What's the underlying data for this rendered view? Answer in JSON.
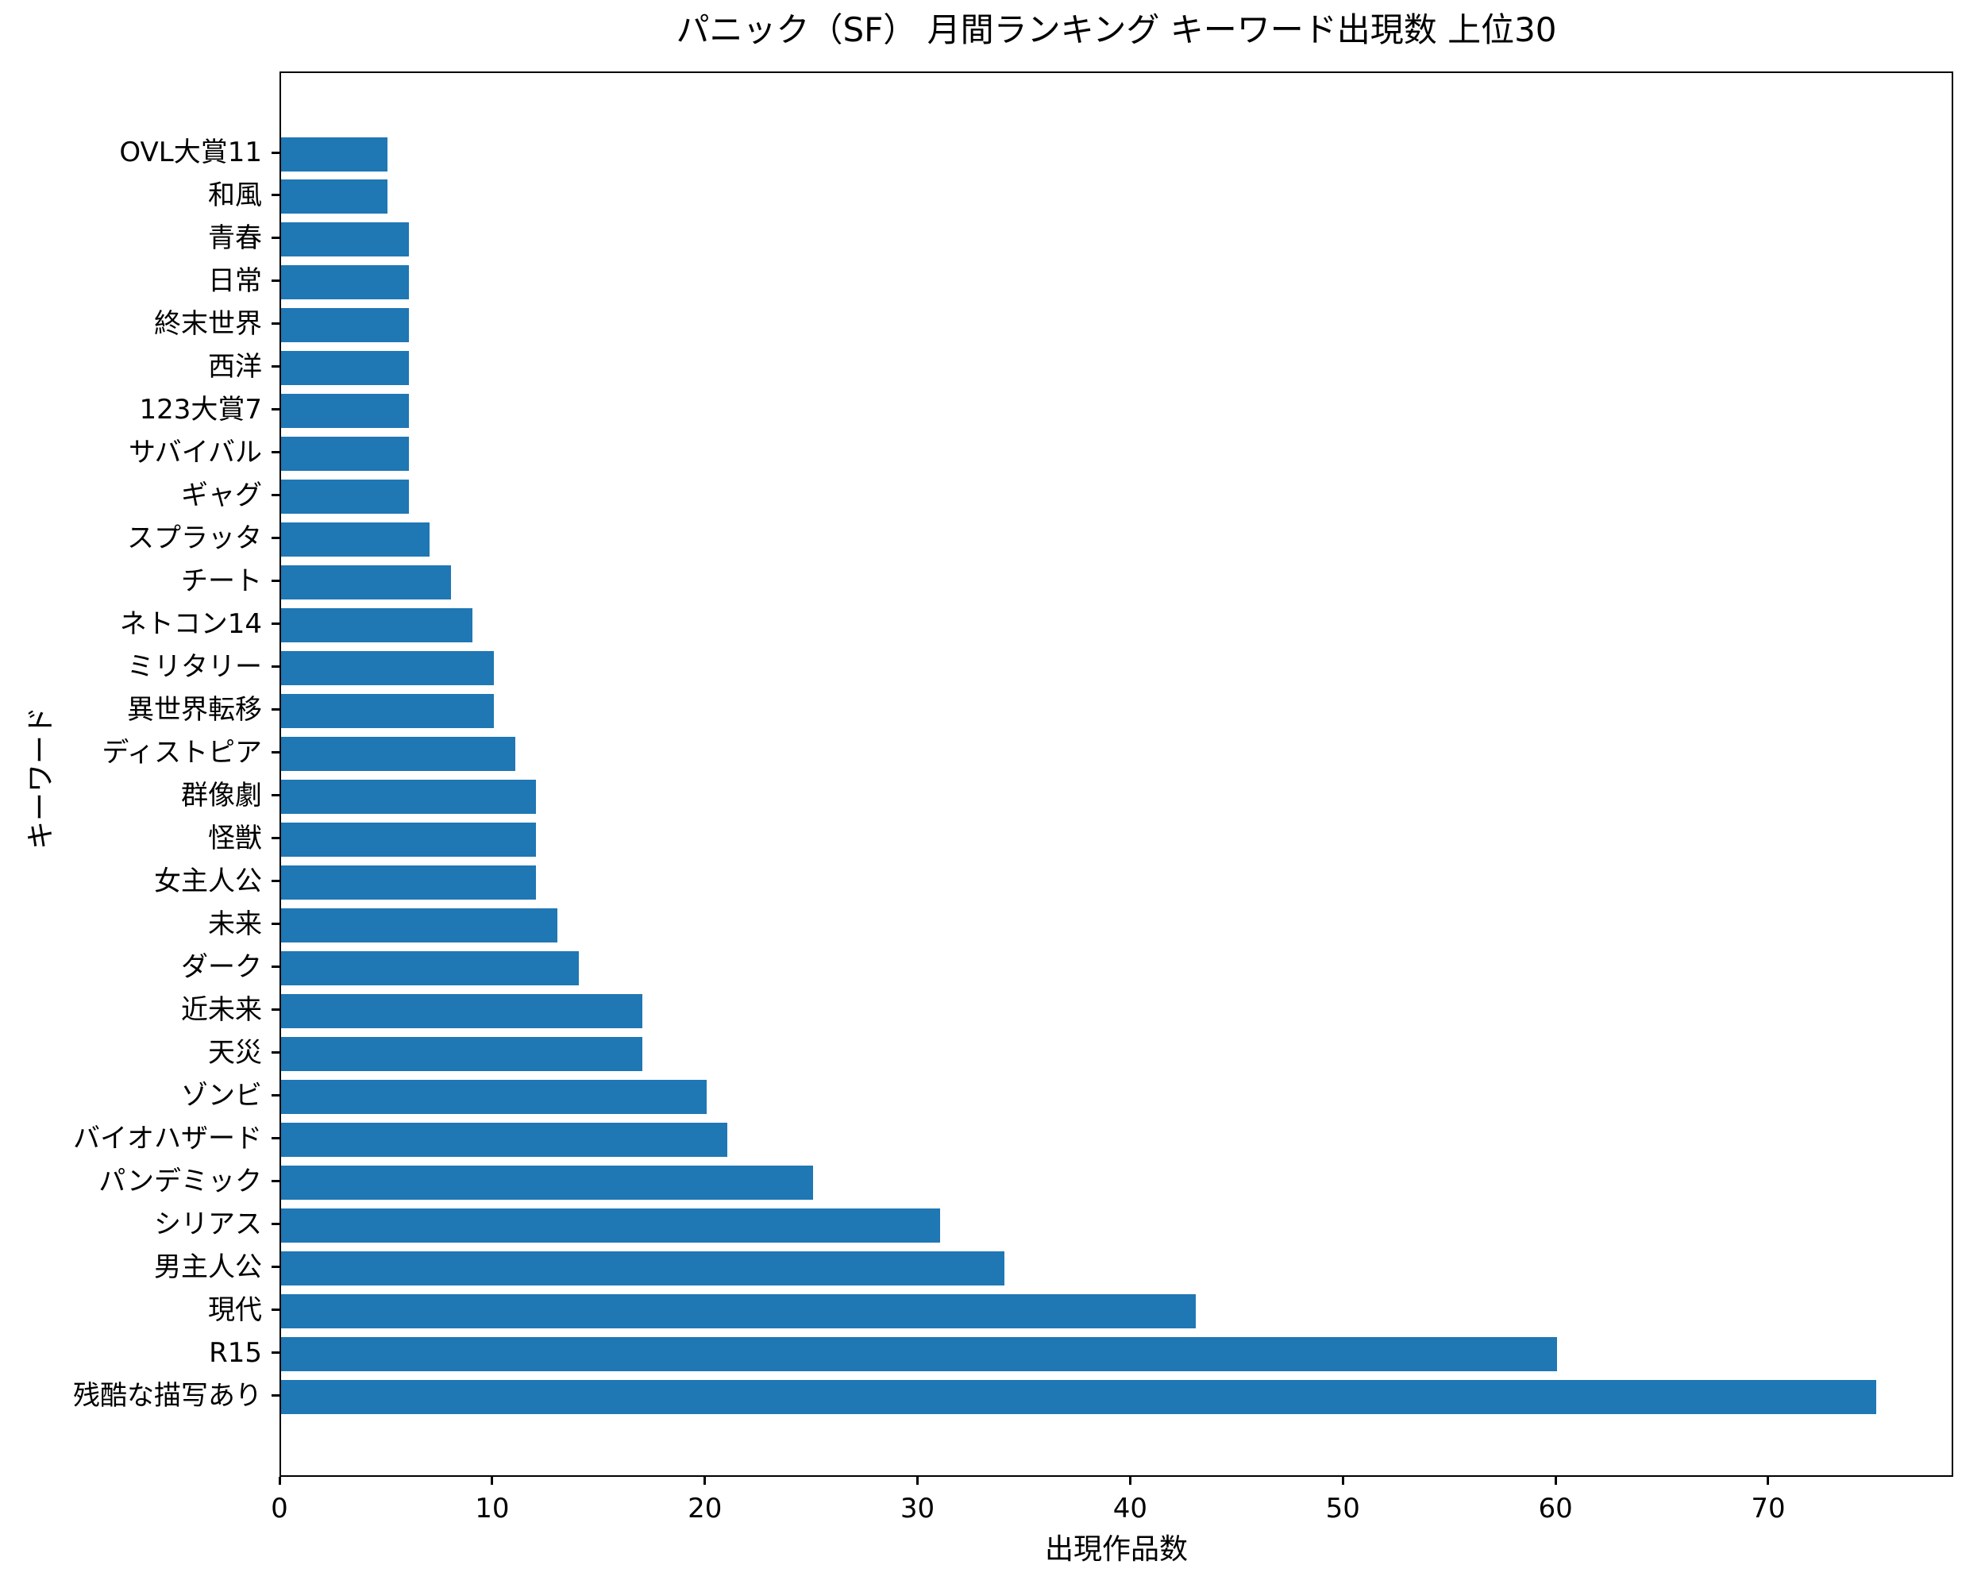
{
  "page": {
    "background": "#ffffff"
  },
  "chart_data": {
    "type": "bar",
    "orientation": "horizontal",
    "title": "パニック（SF） 月間ランキング キーワード出現数 上位30",
    "xlabel": "出現作品数",
    "ylabel": "キーワード",
    "categories": [
      "OVL大賞11",
      "和風",
      "青春",
      "日常",
      "終末世界",
      "西洋",
      "123大賞7",
      "サバイバル",
      "ギャグ",
      "スプラッタ",
      "チート",
      "ネトコン14",
      "ミリタリー",
      "異世界転移",
      "ディストピア",
      "群像劇",
      "怪獣",
      "女主人公",
      "未来",
      "ダーク",
      "近未来",
      "天災",
      "ゾンビ",
      "バイオハザード",
      "パンデミック",
      "シリアス",
      "男主人公",
      "現代",
      "R15",
      "残酷な描写あり"
    ],
    "values": [
      5,
      5,
      6,
      6,
      6,
      6,
      6,
      6,
      6,
      7,
      8,
      9,
      10,
      10,
      11,
      12,
      12,
      12,
      13,
      14,
      17,
      17,
      20,
      21,
      25,
      31,
      34,
      43,
      60,
      75
    ],
    "x_ticks": [
      0,
      10,
      20,
      30,
      40,
      50,
      60,
      70
    ],
    "xlim": [
      0,
      78.7
    ],
    "bar_color": "#1f77b4",
    "axis_color": "#000000",
    "grid": false,
    "legend_position": "none"
  }
}
